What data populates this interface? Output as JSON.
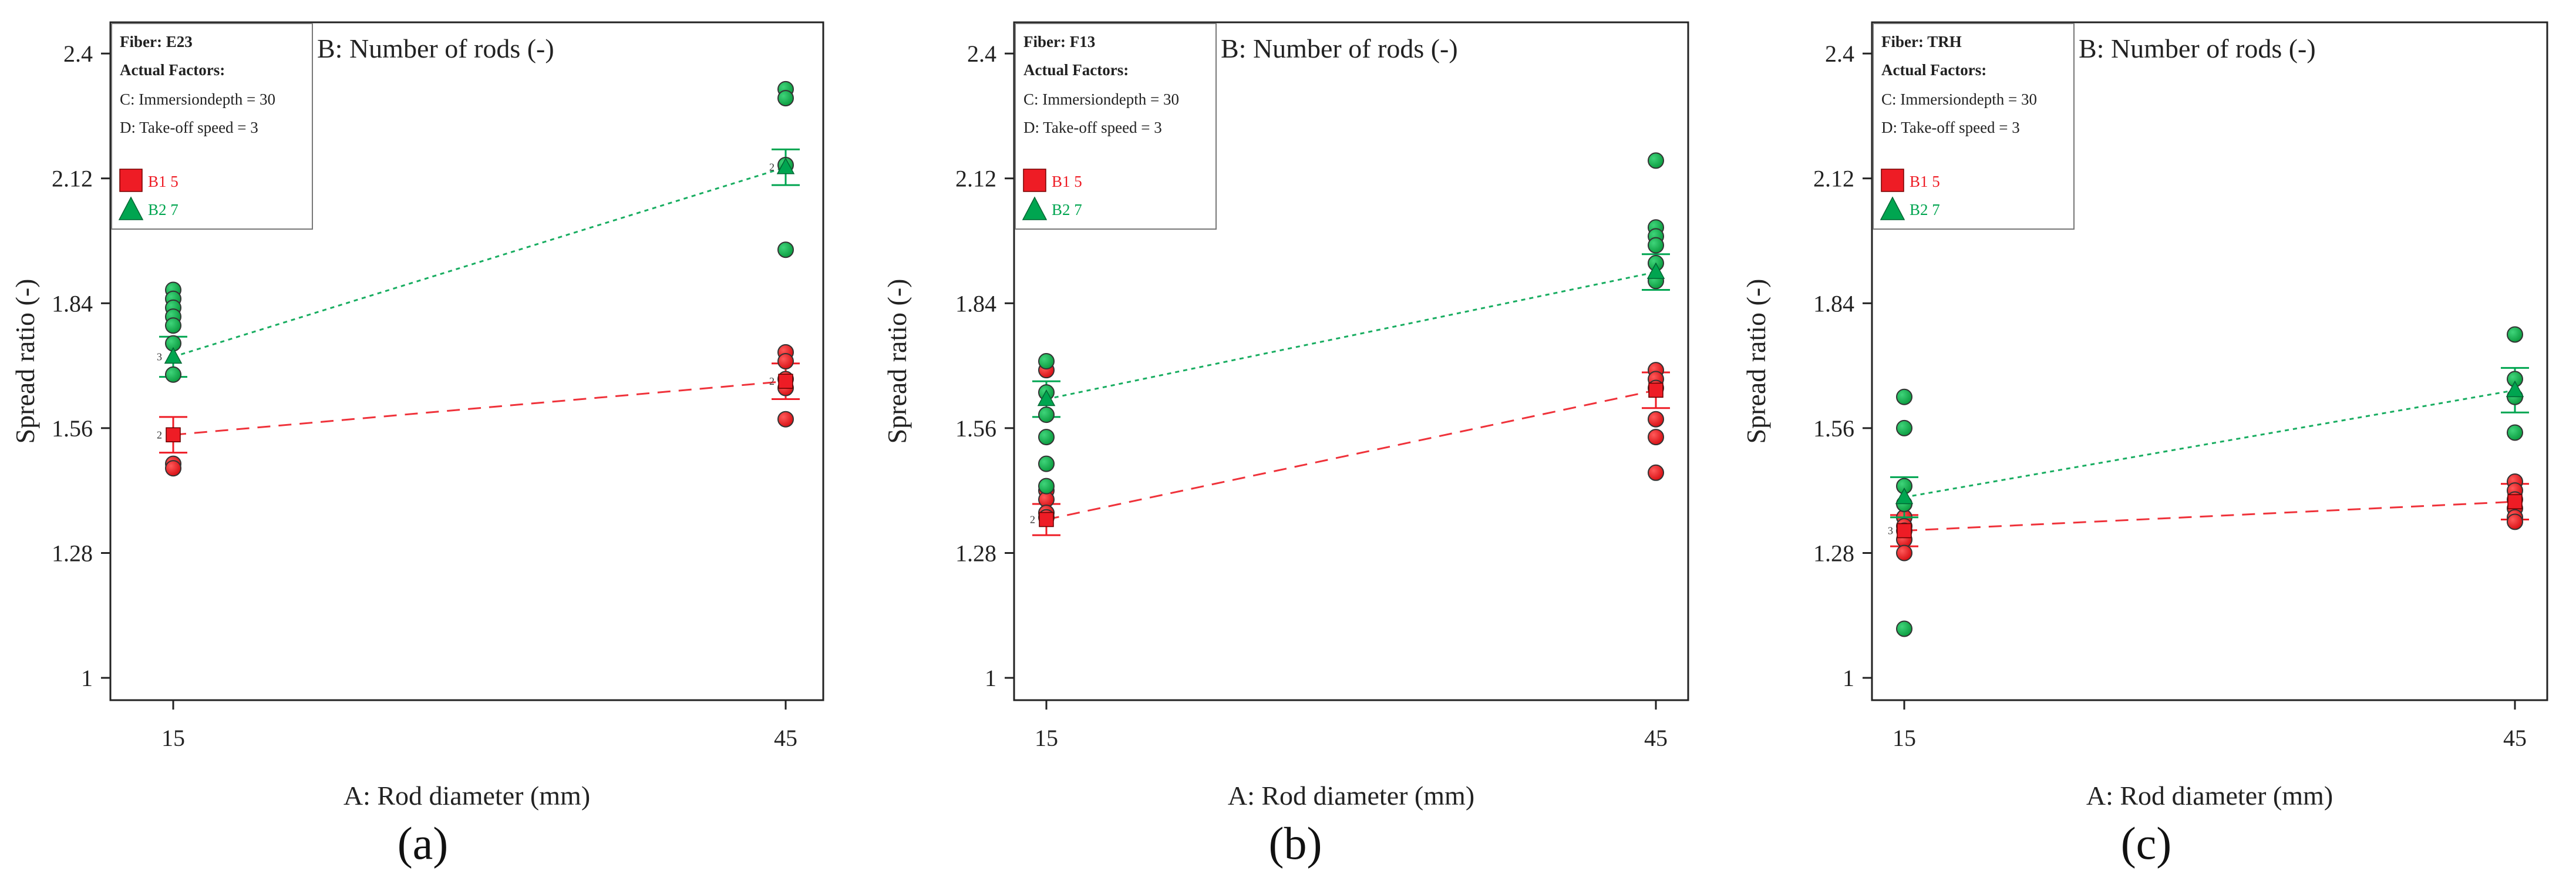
{
  "chart_data": [
    {
      "type": "scatter",
      "panel_label": "(a)",
      "title": "B: Number of rods (-)",
      "xlabel": "A: Rod diameter (mm)",
      "ylabel": "Spread ratio (-)",
      "x_ticks": [
        "15",
        "45"
      ],
      "y_ticks": [
        "1",
        "1.28",
        "1.56",
        "1.84",
        "2.12",
        "2.4"
      ],
      "ylim": [
        0.95,
        2.47
      ],
      "legend": {
        "fiber": "Fiber: E23",
        "heading": "Actual Factors:",
        "factors": [
          "C: Immersiondepth = 30",
          "D: Take-off speed = 3"
        ],
        "entries": [
          "B1 5",
          "B2 7"
        ]
      },
      "series": [
        {
          "name": "B1 5",
          "color": "#ee1c25",
          "marker": "square",
          "line_style": "dashed",
          "means": [
            1.545,
            1.665
          ],
          "error_bars": [
            [
              1.505,
              1.585
            ],
            [
              1.625,
              1.705
            ]
          ],
          "points": {
            "15": [
              1.48,
              1.47
            ],
            "45": [
              1.73,
              1.71,
              1.67,
              1.65,
              1.58
            ]
          }
        },
        {
          "name": "B2 7",
          "color": "#00a550",
          "marker": "triangle",
          "line_style": "dotted",
          "means": [
            1.72,
            2.145
          ],
          "error_bars": [
            [
              1.675,
              1.765
            ],
            [
              2.105,
              2.185
            ]
          ],
          "points": {
            "15": [
              1.87,
              1.85,
              1.83,
              1.81,
              1.79,
              1.75,
              1.68
            ],
            "45": [
              2.32,
              2.3,
              2.15,
              1.96
            ]
          }
        }
      ],
      "point_count_labels": {
        "15": [
          "2",
          "3"
        ],
        "45": [
          "2",
          "2"
        ]
      }
    },
    {
      "type": "scatter",
      "panel_label": "(b)",
      "title": "B: Number of rods (-)",
      "xlabel": "A: Rod diameter (mm)",
      "ylabel": "Spread ratio (-)",
      "x_ticks": [
        "15",
        "45"
      ],
      "y_ticks": [
        "1",
        "1.28",
        "1.56",
        "1.84",
        "2.12",
        "2.4"
      ],
      "ylim": [
        0.95,
        2.47
      ],
      "legend": {
        "fiber": "Fiber: F13",
        "heading": "Actual Factors:",
        "factors": [
          "C: Immersiondepth = 30",
          "D: Take-off speed = 3"
        ],
        "entries": [
          "B1 5",
          "B2 7"
        ]
      },
      "series": [
        {
          "name": "B1 5",
          "color": "#ee1c25",
          "marker": "square",
          "line_style": "dashed",
          "means": [
            1.355,
            1.645
          ],
          "error_bars": [
            [
              1.32,
              1.39
            ],
            [
              1.605,
              1.685
            ]
          ],
          "points": {
            "15": [
              1.69,
              1.42,
              1.4,
              1.37,
              1.36
            ],
            "45": [
              1.69,
              1.67,
              1.65,
              1.58,
              1.54,
              1.46
            ]
          }
        },
        {
          "name": "B2 7",
          "color": "#00a550",
          "marker": "triangle",
          "line_style": "dotted",
          "means": [
            1.625,
            1.91
          ],
          "error_bars": [
            [
              1.585,
              1.665
            ],
            [
              1.87,
              1.95
            ]
          ],
          "points": {
            "15": [
              1.71,
              1.64,
              1.59,
              1.54,
              1.48,
              1.43
            ],
            "45": [
              2.16,
              2.01,
              1.99,
              1.97,
              1.93,
              1.89
            ]
          }
        }
      ],
      "point_count_labels": {
        "15": [
          "2"
        ],
        "45": []
      }
    },
    {
      "type": "scatter",
      "panel_label": "(c)",
      "title": "B: Number of rods (-)",
      "xlabel": "A: Rod diameter (mm)",
      "ylabel": "Spread ratio (-)",
      "x_ticks": [
        "15",
        "45"
      ],
      "y_ticks": [
        "1",
        "1.28",
        "1.56",
        "1.84",
        "2.12",
        "2.4"
      ],
      "ylim": [
        0.95,
        2.47
      ],
      "legend": {
        "fiber": "Fiber: TRH",
        "heading": "Actual Factors:",
        "factors": [
          "C: Immersiondepth = 30",
          "D: Take-off speed = 3"
        ],
        "entries": [
          "B1 5",
          "B2 7"
        ]
      },
      "series": [
        {
          "name": "B1 5",
          "color": "#ee1c25",
          "marker": "square",
          "line_style": "dashed",
          "means": [
            1.33,
            1.395
          ],
          "error_bars": [
            [
              1.295,
              1.365
            ],
            [
              1.355,
              1.435
            ]
          ],
          "points": {
            "15": [
              1.36,
              1.34,
              1.33,
              1.31,
              1.28
            ],
            "45": [
              1.44,
              1.42,
              1.4,
              1.38,
              1.36,
              1.35
            ]
          }
        },
        {
          "name": "B2 7",
          "color": "#00a550",
          "marker": "triangle",
          "line_style": "dotted",
          "means": [
            1.405,
            1.645
          ],
          "error_bars": [
            [
              1.36,
              1.45
            ],
            [
              1.595,
              1.695
            ]
          ],
          "points": {
            "15": [
              1.63,
              1.56,
              1.43,
              1.39,
              1.11
            ],
            "45": [
              1.77,
              1.67,
              1.63,
              1.55
            ]
          }
        }
      ],
      "point_count_labels": {
        "15": [
          "3"
        ],
        "45": []
      }
    }
  ]
}
